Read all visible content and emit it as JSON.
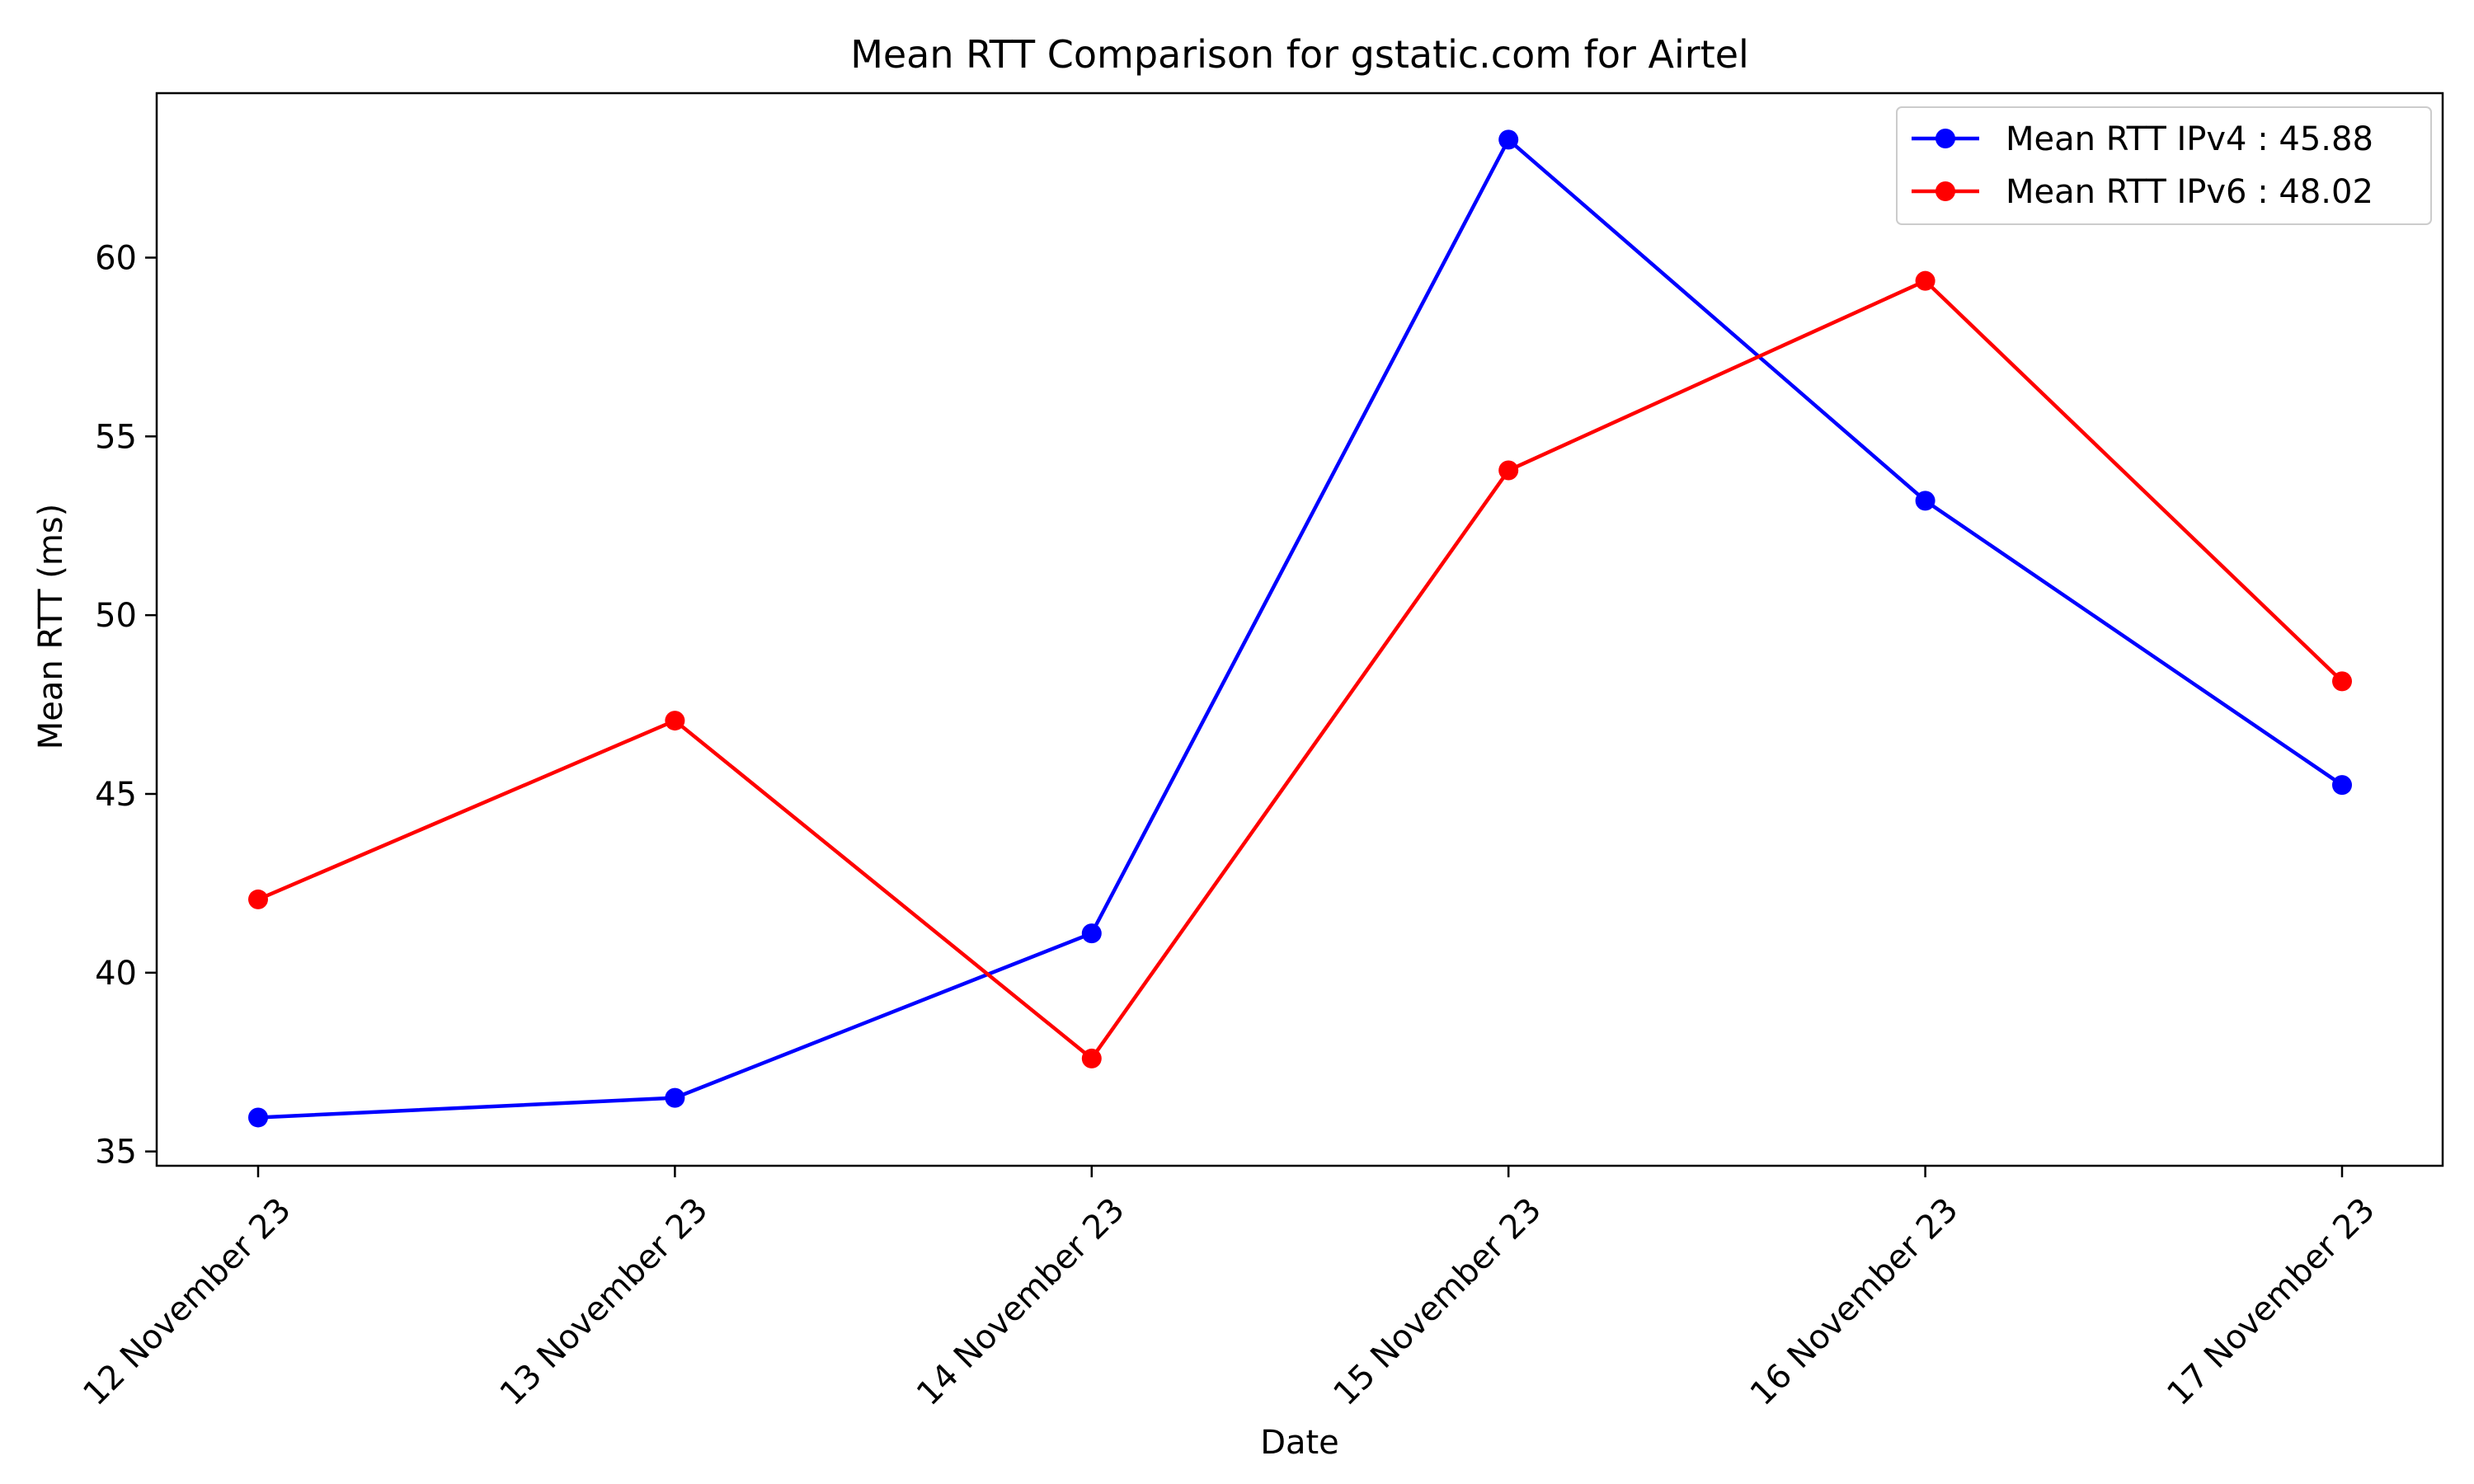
{
  "chart_data": {
    "type": "line",
    "title": "Mean RTT Comparison for gstatic.com for Airtel",
    "xlabel": "Date",
    "ylabel": "Mean RTT (ms)",
    "categories": [
      "12 November 23",
      "13 November 23",
      "14 November 23",
      "15 November 23",
      "16 November 23",
      "17 November 23"
    ],
    "series": [
      {
        "name": "Mean RTT IPv4 : 45.88",
        "color": "#0000ff",
        "values": [
          35.95,
          36.5,
          41.1,
          63.3,
          53.2,
          45.25
        ]
      },
      {
        "name": "Mean RTT IPv6 : 48.02",
        "color": "#ff0000",
        "values": [
          42.05,
          47.05,
          37.6,
          54.05,
          59.35,
          48.15
        ]
      }
    ],
    "ylim": [
      34.6,
      64.6
    ],
    "yticks": [
      35,
      40,
      45,
      50,
      55,
      60
    ],
    "ytick_labels": [
      "35",
      "40",
      "45",
      "50",
      "55",
      "60"
    ],
    "legend": "top-right",
    "grid": false
  }
}
